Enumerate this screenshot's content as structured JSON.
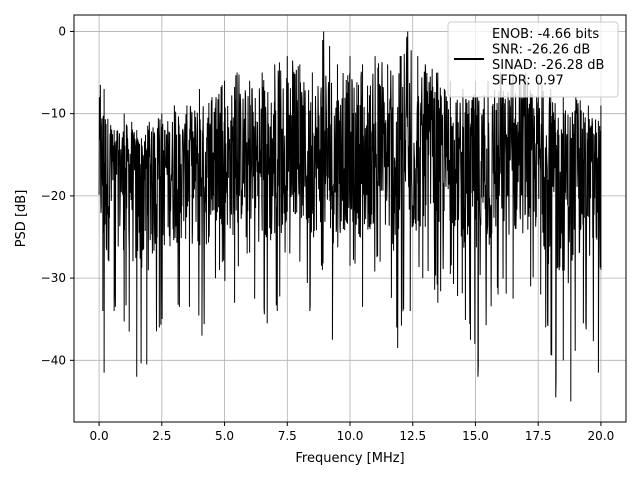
{
  "chart_data": {
    "type": "line",
    "title": "",
    "xlabel": "Frequency [MHz]",
    "ylabel": "PSD [dB]",
    "xlim": [
      -1.0,
      21.0
    ],
    "ylim": [
      -47.5,
      2.0
    ],
    "grid": true,
    "legend_position": "top-right",
    "x_ticks": [
      0.0,
      2.5,
      5.0,
      7.5,
      10.0,
      12.5,
      15.0,
      17.5,
      20.0
    ],
    "x_tick_labels": [
      "0.0",
      "2.5",
      "5.0",
      "7.5",
      "10.0",
      "12.5",
      "15.0",
      "17.5",
      "20.0"
    ],
    "y_ticks": [
      0,
      -10,
      -20,
      -30,
      -40
    ],
    "y_tick_labels": [
      "0",
      "−10",
      "−20",
      "−30",
      "−40"
    ],
    "series": [
      {
        "name": "ENOB: -4.66 bits\nSNR: -26.26 dB\nSINAD: -26.28 dB\nSFDR: 0.97",
        "color": "#000000",
        "x_start": 0.0,
        "x_end": 20.0,
        "spikes": {
          "max": [
            [
              0.05,
              -6.5
            ],
            [
              0.2,
              -7
            ],
            [
              0.6,
              -12
            ],
            [
              1.0,
              -10
            ],
            [
              1.3,
              -11
            ],
            [
              1.5,
              -12
            ],
            [
              2.0,
              -11
            ],
            [
              2.5,
              -10
            ],
            [
              3.0,
              -9
            ],
            [
              3.5,
              -9
            ],
            [
              4.0,
              -7
            ],
            [
              4.5,
              -8
            ],
            [
              5.0,
              -6
            ],
            [
              5.5,
              -5
            ],
            [
              6.0,
              -6
            ],
            [
              6.5,
              -5
            ],
            [
              7.0,
              -4
            ],
            [
              7.5,
              -3
            ],
            [
              8.0,
              -4
            ],
            [
              8.5,
              -5
            ],
            [
              8.95,
              0
            ],
            [
              9.5,
              -4
            ],
            [
              10.0,
              -3
            ],
            [
              10.5,
              -4
            ],
            [
              11.0,
              -3
            ],
            [
              11.5,
              -4
            ],
            [
              12.0,
              -3
            ],
            [
              12.3,
              0
            ],
            [
              12.7,
              -3
            ],
            [
              13.0,
              -4
            ],
            [
              13.5,
              -5
            ],
            [
              14.0,
              -6
            ],
            [
              14.5,
              -7
            ],
            [
              15.0,
              -6
            ],
            [
              15.5,
              -6
            ],
            [
              16.0,
              -5
            ],
            [
              16.5,
              -5
            ],
            [
              17.0,
              -5
            ],
            [
              17.5,
              -6
            ],
            [
              18.0,
              -7
            ],
            [
              18.5,
              -8
            ],
            [
              19.0,
              -8
            ],
            [
              19.5,
              -9
            ],
            [
              20.0,
              -9
            ]
          ],
          "min": [
            [
              0.15,
              -34
            ],
            [
              0.2,
              -41.5
            ],
            [
              0.6,
              -34
            ],
            [
              1.2,
              -36.5
            ],
            [
              1.5,
              -42
            ],
            [
              1.9,
              -40.5
            ],
            [
              2.4,
              -36
            ],
            [
              3.2,
              -33.5
            ],
            [
              3.6,
              -33.5
            ],
            [
              4.1,
              -37
            ],
            [
              4.8,
              -29
            ],
            [
              5.4,
              -33
            ],
            [
              5.9,
              -27
            ],
            [
              6.2,
              -32.5
            ],
            [
              6.7,
              -35.5
            ],
            [
              7.1,
              -34
            ],
            [
              7.6,
              -27
            ],
            [
              8.0,
              -28
            ],
            [
              8.4,
              -34
            ],
            [
              8.9,
              -29
            ],
            [
              9.3,
              -37.5
            ],
            [
              10.0,
              -28.5
            ],
            [
              10.5,
              -33.5
            ],
            [
              11.2,
              -28
            ],
            [
              11.9,
              -38.5
            ],
            [
              12.4,
              -34
            ],
            [
              12.9,
              -30
            ],
            [
              13.5,
              -33
            ],
            [
              14.0,
              -29.5
            ],
            [
              14.8,
              -37.5
            ],
            [
              15.1,
              -42
            ],
            [
              15.9,
              -32
            ],
            [
              16.5,
              -32.5
            ],
            [
              17.2,
              -31
            ],
            [
              17.6,
              -32
            ],
            [
              18.2,
              -44.5
            ],
            [
              18.5,
              -40
            ],
            [
              18.8,
              -45
            ],
            [
              19.3,
              -35.5
            ],
            [
              19.9,
              -41.5
            ]
          ]
        }
      }
    ]
  }
}
